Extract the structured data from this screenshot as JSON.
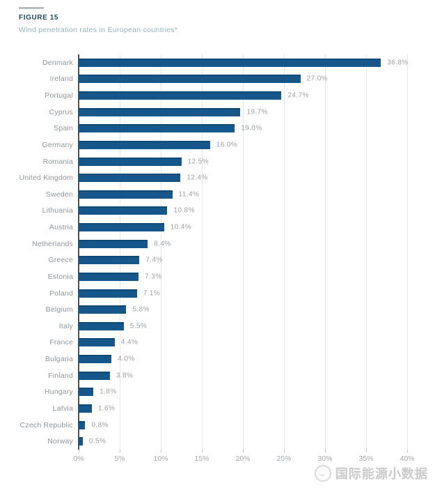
{
  "figure": {
    "label": "FIGURE 15",
    "subtitle": "Wind penetration rates in European countries*"
  },
  "chart_data": {
    "type": "bar",
    "orientation": "horizontal",
    "title": "Wind penetration rates in European countries*",
    "xlabel": "",
    "ylabel": "",
    "xlim": [
      0,
      40
    ],
    "grid": true,
    "bar_color": "#15578a",
    "categories": [
      "Denmark",
      "Ireland",
      "Portugal",
      "Cyprus",
      "Spain",
      "Germany",
      "Romania",
      "United Kingdom",
      "Sweden",
      "Lithuania",
      "Austria",
      "Netherlands",
      "Greece",
      "Estonia",
      "Poland",
      "Belgium",
      "Italy",
      "France",
      "Bulgaria",
      "Finland",
      "Hungary",
      "Latvia",
      "Czech Republic",
      "Norway"
    ],
    "values": [
      36.8,
      27.0,
      24.7,
      19.7,
      19.0,
      16.0,
      12.5,
      12.4,
      11.4,
      10.8,
      10.4,
      8.4,
      7.4,
      7.3,
      7.1,
      5.8,
      5.5,
      4.4,
      4.0,
      3.8,
      1.8,
      1.6,
      0.8,
      0.5
    ],
    "value_labels": [
      "36.8%",
      "27.0%",
      "24.7%",
      "19.7%",
      "19.0%",
      "16.0%",
      "12.5%",
      "12.4%",
      "11.4%",
      "10.8%",
      "10.4%",
      "8.4%",
      "7.4%",
      "7.3%",
      "7.1%",
      "5.8%",
      "5.5%",
      "4.4%",
      "4.0%",
      "3.8%",
      "1.8%",
      "1.6%",
      "0.8%",
      "0.5%"
    ],
    "x_tick_labels": [
      "0%",
      "5%",
      "10%",
      "15%",
      "20%",
      "25%",
      "30%",
      "35%",
      "40%"
    ]
  },
  "watermark": {
    "text": "国际能源小数据",
    "logo": "circle-logo-icon"
  }
}
